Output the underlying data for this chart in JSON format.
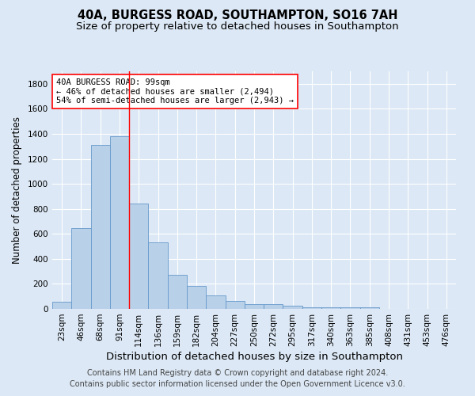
{
  "title": "40A, BURGESS ROAD, SOUTHAMPTON, SO16 7AH",
  "subtitle": "Size of property relative to detached houses in Southampton",
  "xlabel": "Distribution of detached houses by size in Southampton",
  "ylabel": "Number of detached properties",
  "categories": [
    "23sqm",
    "46sqm",
    "68sqm",
    "91sqm",
    "114sqm",
    "136sqm",
    "159sqm",
    "182sqm",
    "204sqm",
    "227sqm",
    "250sqm",
    "272sqm",
    "295sqm",
    "317sqm",
    "340sqm",
    "363sqm",
    "385sqm",
    "408sqm",
    "431sqm",
    "453sqm",
    "476sqm"
  ],
  "values": [
    55,
    645,
    1310,
    1380,
    845,
    530,
    275,
    185,
    105,
    65,
    38,
    35,
    25,
    15,
    15,
    10,
    15,
    0,
    0,
    0,
    0
  ],
  "bar_color": "#b8d0e8",
  "bar_edge_color": "#6699cc",
  "bg_color": "#dce8f5",
  "grid_color": "#ffffff",
  "vline_x": 3.5,
  "vline_color": "red",
  "annotation_text": "40A BURGESS ROAD: 99sqm\n← 46% of detached houses are smaller (2,494)\n54% of semi-detached houses are larger (2,943) →",
  "annotation_box_color": "white",
  "annotation_box_edge": "red",
  "footer_line1": "Contains HM Land Registry data © Crown copyright and database right 2024.",
  "footer_line2": "Contains public sector information licensed under the Open Government Licence v3.0.",
  "ylim": [
    0,
    1900
  ],
  "title_fontsize": 10.5,
  "subtitle_fontsize": 9.5,
  "xlabel_fontsize": 9.5,
  "ylabel_fontsize": 8.5,
  "tick_fontsize": 7.5,
  "footer_fontsize": 7.0
}
